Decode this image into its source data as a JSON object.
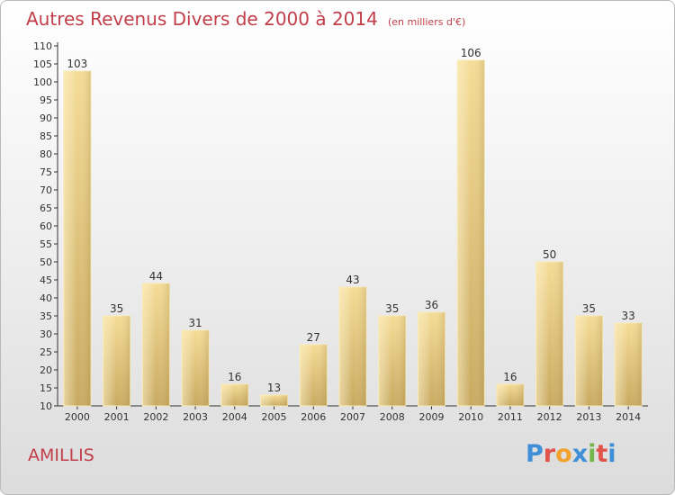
{
  "chart_data": {
    "type": "bar",
    "title": "Autres Revenus Divers de 2000 à 2014",
    "subtitle": "(en milliers d'€)",
    "categories": [
      "2000",
      "2001",
      "2002",
      "2003",
      "2004",
      "2005",
      "2006",
      "2007",
      "2008",
      "2009",
      "2010",
      "2011",
      "2012",
      "2013",
      "2014"
    ],
    "values": [
      103,
      35,
      44,
      31,
      16,
      13,
      27,
      43,
      35,
      36,
      106,
      16,
      50,
      35,
      33
    ],
    "ylim": [
      10,
      110
    ],
    "yticks": [
      10,
      15,
      20,
      25,
      30,
      35,
      40,
      45,
      50,
      55,
      60,
      65,
      70,
      75,
      80,
      85,
      90,
      95,
      100,
      105,
      110
    ],
    "grid": false,
    "bar_color": "#e8c877"
  },
  "commune": "AMILLIS",
  "logo": {
    "text": "Proxiti",
    "colors": [
      "#3f8fd6",
      "#e0524a",
      "#f2a22e",
      "#3f8fd6",
      "#74b64a",
      "#e0524a",
      "#3f8fd6"
    ]
  }
}
